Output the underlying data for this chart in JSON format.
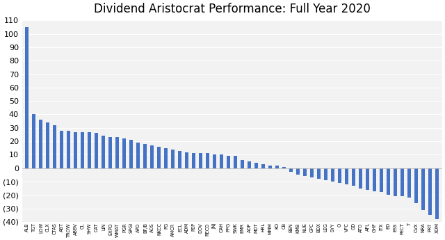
{
  "title": "Dividend Aristocrat Performance: Full Year 2020",
  "bar_color": "#4472C4",
  "background_color": "#ffffff",
  "plot_bg_color": "#f2f2f2",
  "gridline_color": "#ffffff",
  "categories": [
    "ALB",
    "TGT",
    "LOW",
    "CLX",
    "CTAS",
    "ABT",
    "TROW",
    "ABBV",
    "CL",
    "SHW",
    "CAT",
    "LIN",
    "EXPD",
    "WMAT",
    "PGR",
    "SPGI",
    "APD",
    "BF/B",
    "AOS",
    "NKCC",
    "PG",
    "AMCR",
    "ECL",
    "ADM",
    "PEP",
    "DOV",
    "RECD",
    "JNJ",
    "CAH",
    "PPG",
    "SWK",
    "EMR",
    "ADP",
    "MDT",
    "HRL",
    "MMM",
    "KO",
    "CB",
    "BEN",
    "KMB",
    "NUE",
    "GPC",
    "BDX",
    "LEG",
    "SYY",
    "O",
    "VFC",
    "GD",
    "ATO",
    "AFL",
    "GHF",
    "ITX",
    "ED",
    "ESS",
    "PECT",
    "T",
    "CVX",
    "NRA",
    "PRT",
    "XOM"
  ],
  "values": [
    105,
    40,
    36,
    34,
    32,
    28,
    28,
    27,
    27,
    27,
    26,
    24,
    23,
    23,
    22,
    21,
    19,
    18,
    17,
    16,
    15,
    14,
    13,
    12,
    11,
    11,
    11,
    10,
    10,
    9,
    9,
    6,
    5,
    4,
    3,
    2,
    2,
    1,
    -3,
    -5,
    -6,
    -7,
    -8,
    -9,
    -10,
    -11,
    -12,
    -13,
    -15,
    -16,
    -17,
    -18,
    -20,
    -21,
    -21,
    -22,
    -26,
    -31,
    -35,
    -38
  ],
  "ylim": [
    -40,
    110
  ],
  "yticks": [
    -40,
    -30,
    -20,
    -10,
    0,
    10,
    20,
    30,
    40,
    50,
    60,
    70,
    80,
    90,
    100,
    110
  ],
  "title_fontsize": 12,
  "xtick_fontsize": 4.8,
  "ytick_fontsize": 8,
  "bar_width": 0.5
}
